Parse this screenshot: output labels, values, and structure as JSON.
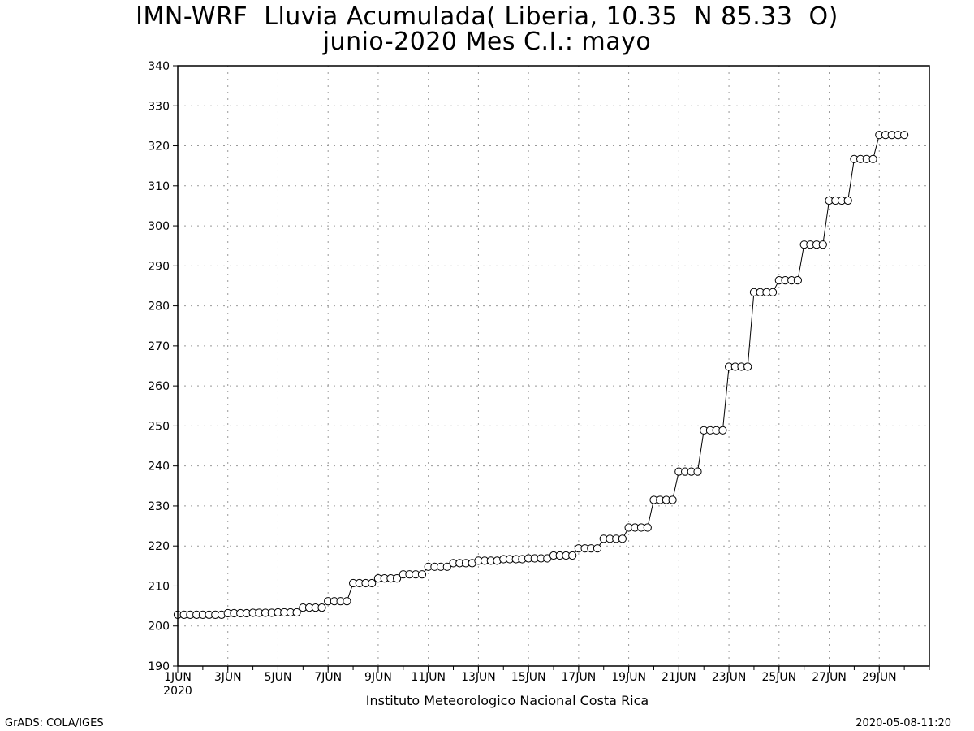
{
  "title_line1": "IMN-WRF  Lluvia Acumulada( Liberia, 10.35  N 85.33  O)",
  "title_line2": "junio-2020 Mes C.I.: mayo",
  "footer": {
    "institution": "Instituto Meteorologico Nacional Costa Rica",
    "credit": "GrADS: COLA/IGES",
    "timestamp": "2020-05-08-11:20"
  },
  "chart_data": {
    "type": "line",
    "title": "IMN-WRF  Lluvia Acumulada( Liberia, 10.35  N 85.33  O)",
    "subtitle": "junio-2020 Mes C.I.: mayo",
    "xlabel": "",
    "ylabel": "",
    "xlim_days": [
      1,
      31
    ],
    "ylim": [
      190,
      340
    ],
    "yticks": [
      190,
      200,
      210,
      220,
      230,
      240,
      250,
      260,
      270,
      280,
      290,
      300,
      310,
      320,
      330,
      340
    ],
    "xticks": [
      {
        "day": 1,
        "label": "1JUN"
      },
      {
        "day": 3,
        "label": "3JUN"
      },
      {
        "day": 5,
        "label": "5JUN"
      },
      {
        "day": 7,
        "label": "7JUN"
      },
      {
        "day": 9,
        "label": "9JUN"
      },
      {
        "day": 11,
        "label": "11JUN"
      },
      {
        "day": 13,
        "label": "13JUN"
      },
      {
        "day": 15,
        "label": "15JUN"
      },
      {
        "day": 17,
        "label": "17JUN"
      },
      {
        "day": 19,
        "label": "19JUN"
      },
      {
        "day": 21,
        "label": "21JUN"
      },
      {
        "day": 23,
        "label": "23JUN"
      },
      {
        "day": 25,
        "label": "25JUN"
      },
      {
        "day": 27,
        "label": "27JUN"
      },
      {
        "day": 29,
        "label": "29JUN"
      }
    ],
    "year_label": "2020",
    "grid": true,
    "interval_hours": 6,
    "daily_values": [
      [
        202.8,
        202.8,
        202.8,
        202.8
      ],
      [
        202.8,
        202.8,
        202.8,
        202.8
      ],
      [
        203.2,
        203.2,
        203.2,
        203.2
      ],
      [
        203.3,
        203.3,
        203.3,
        203.3
      ],
      [
        203.4,
        203.4,
        203.4,
        203.4
      ],
      [
        204.6,
        204.6,
        204.6,
        204.6
      ],
      [
        206.2,
        206.2,
        206.2,
        206.2
      ],
      [
        210.7,
        210.7,
        210.7,
        210.7
      ],
      [
        211.9,
        211.9,
        211.9,
        211.9
      ],
      [
        212.9,
        212.9,
        212.9,
        212.9
      ],
      [
        214.8,
        214.8,
        214.8,
        214.8
      ],
      [
        215.7,
        215.7,
        215.7,
        215.7
      ],
      [
        216.3,
        216.3,
        216.3,
        216.3
      ],
      [
        216.7,
        216.7,
        216.7,
        216.7
      ],
      [
        216.9,
        216.9,
        216.9,
        216.9
      ],
      [
        217.6,
        217.6,
        217.6,
        217.6
      ],
      [
        219.4,
        219.4,
        219.4,
        219.4
      ],
      [
        221.8,
        221.8,
        221.8,
        221.8
      ],
      [
        224.6,
        224.6,
        224.6,
        224.6
      ],
      [
        231.5,
        231.5,
        231.5,
        231.5
      ],
      [
        238.6,
        238.6,
        238.6,
        238.6
      ],
      [
        248.9,
        248.9,
        248.9,
        248.9
      ],
      [
        264.8,
        264.8,
        264.8,
        264.8
      ],
      [
        283.4,
        283.4,
        283.4,
        283.4
      ],
      [
        286.4,
        286.4,
        286.4,
        286.4
      ],
      [
        295.3,
        295.3,
        295.3,
        295.3
      ],
      [
        306.3,
        306.3,
        306.3,
        306.3
      ],
      [
        316.7,
        316.7,
        316.7,
        316.7
      ],
      [
        322.7,
        322.7,
        322.7,
        322.7
      ]
    ],
    "last_day_values": [
      322.7
    ]
  }
}
